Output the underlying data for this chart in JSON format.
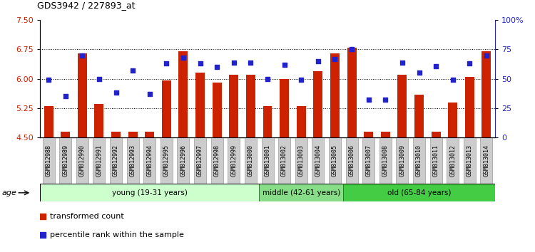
{
  "title": "GDS3942 / 227893_at",
  "samples": [
    "GSM812988",
    "GSM812989",
    "GSM812990",
    "GSM812991",
    "GSM812992",
    "GSM812993",
    "GSM812994",
    "GSM812995",
    "GSM812996",
    "GSM812997",
    "GSM812998",
    "GSM812999",
    "GSM813000",
    "GSM813001",
    "GSM813002",
    "GSM813003",
    "GSM813004",
    "GSM813005",
    "GSM813006",
    "GSM813007",
    "GSM813008",
    "GSM813009",
    "GSM813010",
    "GSM813011",
    "GSM813012",
    "GSM813013",
    "GSM813014"
  ],
  "bar_values": [
    5.3,
    4.65,
    6.65,
    5.35,
    4.65,
    4.65,
    4.65,
    5.95,
    6.7,
    6.15,
    5.9,
    6.1,
    6.1,
    5.3,
    6.0,
    5.3,
    6.2,
    6.65,
    6.8,
    4.65,
    4.65,
    6.1,
    5.6,
    4.65,
    5.4,
    6.05,
    6.7
  ],
  "dot_values": [
    49,
    35,
    70,
    50,
    38,
    57,
    37,
    63,
    68,
    63,
    60,
    64,
    64,
    50,
    62,
    49,
    65,
    67,
    75,
    32,
    32,
    64,
    55,
    61,
    49,
    63,
    70
  ],
  "bar_color": "#cc2200",
  "dot_color": "#2222cc",
  "ylim_left": [
    4.5,
    7.5
  ],
  "ylim_right": [
    0,
    100
  ],
  "yticks_left": [
    4.5,
    5.25,
    6.0,
    6.75,
    7.5
  ],
  "yticks_right": [
    0,
    25,
    50,
    75,
    100
  ],
  "hlines": [
    5.25,
    6.0,
    6.75
  ],
  "groups": [
    {
      "label": "young (19-31 years)",
      "start": 0,
      "end": 13,
      "color": "#ccffcc"
    },
    {
      "label": "middle (42-61 years)",
      "start": 13,
      "end": 18,
      "color": "#88dd88"
    },
    {
      "label": "old (65-84 years)",
      "start": 18,
      "end": 27,
      "color": "#44cc44"
    }
  ],
  "age_label": "age",
  "legend_bar": "transformed count",
  "legend_dot": "percentile rank within the sample",
  "bar_width": 0.55,
  "baseline": 4.5,
  "tick_label_fontsize": 6.0,
  "label_bg_color": "#cccccc"
}
